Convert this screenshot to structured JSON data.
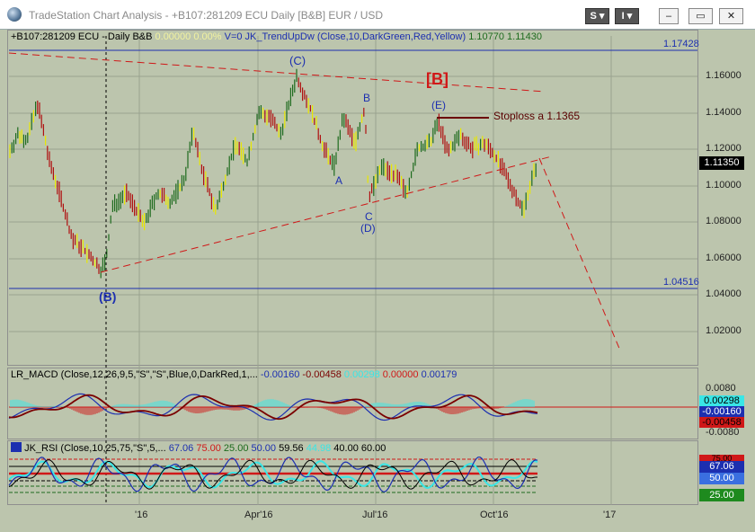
{
  "window": {
    "title": "TradeStation Chart Analysis  -  +B107:281209 ECU Daily [B&B] EUR / USD",
    "btn_s": "S ▾",
    "btn_i": "I ▾",
    "btn_min": "–",
    "btn_max": "▭",
    "btn_close": "✕"
  },
  "price": {
    "symbol": "+B107:281209 ECU - Daily  B&B",
    "val1": "0.00000",
    "val2": "0.00%",
    "indicator": "V=0  JK_TrendUpDw  (Close,10,DarkGreen,Red,Yellow)",
    "ind1": "1.10770",
    "ind2": "1.11430",
    "ticks": [
      "1.16000",
      "1.14000",
      "1.12000",
      "1.10000",
      "1.08000",
      "1.06000",
      "1.04000",
      "1.02000"
    ],
    "level_top": "1.17428",
    "level_bottom": "1.04516",
    "last": "1.11350",
    "annotations": {
      "c_wave": "(C)",
      "b_big": "[B]",
      "b_small": "B",
      "e_wave": "(E)",
      "stoploss": "Stoploss a 1.1365",
      "a_label": "A",
      "c_label": "C",
      "d_wave": "(D)",
      "b_paren": "(B)"
    }
  },
  "macd": {
    "title": "LR_MACD (Close,12,26,9,5,\"S\",\"S\",Blue,0,DarkRed,1,...",
    "v1": "-0.00160",
    "v2": "-0.00458",
    "v3": "0.00298",
    "v4": "0.00000",
    "v5": "0.00179",
    "tick_top": "0.0080",
    "box1": "0.00298",
    "box2": "-0.00160",
    "box3": "-0.00458",
    "tick_bottom": "-0.0080"
  },
  "rsi": {
    "title": "JK_RSI (Close,10,25,75,\"S\",5,...",
    "v1": "67.06",
    "v2": "75.00",
    "v3": "25.00",
    "v4": "50.00",
    "v5": "59.56",
    "v6": "44.98",
    "v7": "40.00",
    "v8": "60.00",
    "box1": "75.00",
    "box2": "67.06",
    "box3": "50.00",
    "box4": "25.00"
  },
  "dates": [
    "'16",
    "Apr'16",
    "Jul'16",
    "Oct'16",
    "'17"
  ],
  "colors": {
    "background": "#bcc5ad",
    "bar_green": "#1e6b1e",
    "bar_red": "#b01010",
    "bar_yellow": "#e8e800",
    "trend": "#d01818",
    "level": "#1c2fb0",
    "macd_line": "#1c2fb0",
    "macd_signal": "#7a0000",
    "rsi_line": "#1c2fb0",
    "cyan": "#39e6e6"
  }
}
